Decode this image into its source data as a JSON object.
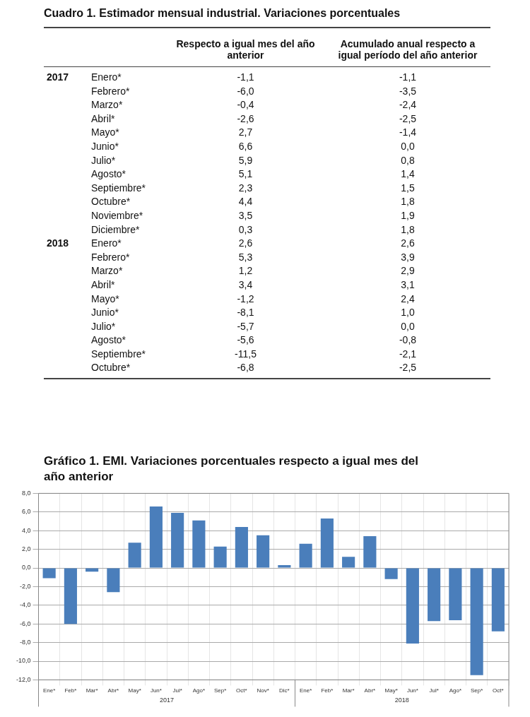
{
  "chart_data": [
    {
      "type": "other",
      "title": "Cuadro 1. Estimador mensual industrial. Variaciones porcentuales",
      "categories": [
        "Respecto a igual mes del año anterior",
        "Acumulado anual respecto a igual período del año anterior"
      ]
    },
    {
      "type": "other",
      "title": "2017",
      "annotations": [
        "Enero*",
        "-1,1",
        "-1,1",
        "Febrero*",
        "-6,0",
        "-3,5",
        "Marzo*",
        "-0,4",
        "-2,4",
        "Abril*",
        "-2,6",
        "-2,5",
        "Mayo*",
        "2,7",
        "-1,4",
        "Junio*",
        "6,6",
        "0,0",
        "Julio*",
        "5,9",
        "0,8",
        "Agosto*",
        "5,1",
        "1,4",
        "Septiembre*",
        "2,3",
        "1,5",
        "Octubre*",
        "4,4",
        "1,8",
        "Noviembre*",
        "3,5",
        "1,9",
        "Diciembre*",
        "0,3",
        "1,8"
      ]
    },
    {
      "type": "other",
      "title": "2018",
      "annotations": [
        "Enero*",
        "2,6",
        "2,6",
        "Febrero*",
        "5,3",
        "3,9",
        "Marzo*",
        "1,2",
        "2,9",
        "Abril*",
        "3,4",
        "3,1",
        "Mayo*",
        "-1,2",
        "2,4",
        "Junio*",
        "-8,1",
        "1,0",
        "Julio*",
        "-5,7",
        "0,0",
        "Agosto*",
        "-5,6",
        "-0,8",
        "Septiembre*",
        "-11,5",
        "-2,1",
        "Octubre*",
        "-6,8",
        "-2,5"
      ]
    },
    {
      "type": "bar",
      "title": "Gráfico 1. EMI. Variaciones porcentuales respecto a igual mes del año anterior",
      "categories": [
        "Ene*",
        "Feb*",
        "Mar*",
        "Abr*",
        "May*",
        "Jun*",
        "Jul*",
        "Ago*",
        "Sep*",
        "Oct*",
        "Nov*",
        "Dic*",
        "Ene*",
        "Feb*",
        "Mar*",
        "Abr*",
        "May*",
        "Jun*",
        "Jul*",
        "Ago*",
        "Sep*",
        "Oct*"
      ],
      "values": [
        -1.1,
        -6.0,
        -0.4,
        -2.6,
        2.7,
        6.6,
        5.9,
        5.1,
        2.3,
        4.4,
        3.5,
        0.3,
        2.6,
        5.3,
        1.2,
        3.4,
        -1.2,
        -8.1,
        -5.7,
        -5.6,
        -11.5,
        -6.8
      ],
      "color": "#4a7ebb",
      "ylim": [
        -12,
        8
      ],
      "yticks": [
        {
          "value": -12,
          "label": "-12,0"
        },
        {
          "value": -10,
          "label": "-10,0"
        },
        {
          "value": -8,
          "label": "-8,0"
        },
        {
          "value": -6,
          "label": "-6,0"
        },
        {
          "value": -4,
          "label": "-4,0"
        },
        {
          "value": -2,
          "label": "-2,0"
        },
        {
          "value": 0,
          "label": "0,0"
        },
        {
          "value": 2,
          "label": "2,0"
        },
        {
          "value": 4,
          "label": "4,0"
        },
        {
          "value": 6,
          "label": "6,0"
        },
        {
          "value": 8,
          "label": "8,0"
        }
      ],
      "grid": true,
      "annotations": [
        "2017",
        "2018"
      ]
    }
  ]
}
